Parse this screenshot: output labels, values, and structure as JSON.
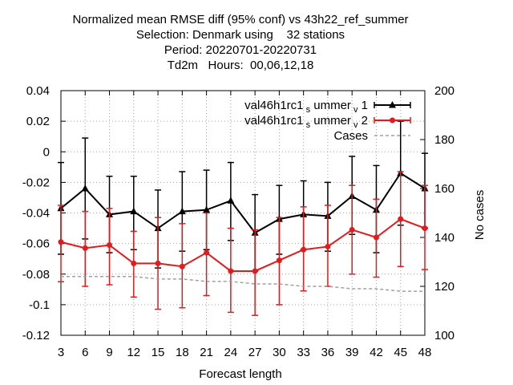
{
  "title": {
    "line1": "Normalized mean RMSE diff (95% conf) vs 43h22_ref_summer",
    "line2": "Selection: Denmark using    32 stations",
    "line3": "Period: 20220701-20220731",
    "line4": "Td2m   Hours:  00,06,12,18"
  },
  "chart_data": {
    "type": "line",
    "xlabel": "Forecast length",
    "ylabel": "",
    "y2label": "No cases",
    "x": [
      3,
      6,
      9,
      12,
      15,
      18,
      21,
      24,
      27,
      30,
      33,
      36,
      39,
      42,
      45,
      48
    ],
    "xlim": [
      3,
      48
    ],
    "ylim": [
      -0.12,
      0.04
    ],
    "y2lim": [
      100,
      200
    ],
    "yticks": [
      0.04,
      0.02,
      0,
      -0.02,
      -0.04,
      -0.06,
      -0.08,
      -0.1,
      -0.12
    ],
    "yticklabels": [
      "0.04",
      "0.02",
      "0",
      "-0.02",
      "-0.04",
      "-0.06",
      "-0.08",
      "-0.1",
      "-0.12"
    ],
    "y2ticks": [
      200,
      180,
      160,
      140,
      120,
      100
    ],
    "grid": true,
    "legend_position": "top-right",
    "series": [
      {
        "name": "val46h1rc1_summer_v1",
        "legend_main": "val46h1rc1",
        "legend_sub1": "s",
        "legend_mid": "ummer",
        "legend_sub2": "v",
        "legend_end": "1",
        "color": "#000000",
        "marker": "triangle",
        "axis": "y1",
        "values": [
          -0.037,
          -0.024,
          -0.041,
          -0.039,
          -0.05,
          -0.039,
          -0.038,
          -0.032,
          -0.053,
          -0.044,
          -0.041,
          -0.042,
          -0.029,
          -0.038,
          -0.014,
          -0.024
        ],
        "err_low": [
          -0.067,
          -0.057,
          -0.066,
          -0.064,
          -0.076,
          -0.065,
          -0.064,
          -0.058,
          -0.078,
          -0.067,
          -0.064,
          -0.065,
          -0.054,
          -0.066,
          -0.048,
          -0.05
        ],
        "err_high": [
          -0.007,
          0.009,
          -0.016,
          -0.016,
          -0.025,
          -0.013,
          -0.012,
          -0.007,
          -0.028,
          -0.022,
          -0.019,
          -0.02,
          -0.003,
          -0.009,
          0.02,
          -0.001
        ]
      },
      {
        "name": "val46h1rc1_summer_v2",
        "legend_main": "val46h1rc1",
        "legend_sub1": "s",
        "legend_mid": "ummer",
        "legend_sub2": "v",
        "legend_end": "2",
        "color": "#e41a1c",
        "marker": "circle",
        "axis": "y1",
        "values": [
          -0.059,
          -0.063,
          -0.061,
          -0.073,
          -0.073,
          -0.075,
          -0.066,
          -0.078,
          -0.078,
          -0.071,
          -0.064,
          -0.062,
          -0.051,
          -0.056,
          -0.044,
          -0.05
        ],
        "err_low": [
          -0.085,
          -0.088,
          -0.087,
          -0.095,
          -0.103,
          -0.102,
          -0.094,
          -0.105,
          -0.107,
          -0.1,
          -0.091,
          -0.088,
          -0.08,
          -0.082,
          -0.075,
          -0.077
        ],
        "err_high": [
          -0.035,
          -0.039,
          -0.037,
          -0.052,
          -0.043,
          -0.047,
          -0.04,
          -0.05,
          -0.051,
          -0.043,
          -0.036,
          -0.035,
          -0.022,
          -0.031,
          -0.013,
          -0.022
        ]
      },
      {
        "name": "Cases",
        "color": "#a0a0a0",
        "style": "dashed",
        "axis": "y2",
        "values": [
          124,
          124,
          124,
          124,
          123,
          123,
          122,
          122,
          121,
          121,
          120,
          120,
          119,
          119,
          118,
          118
        ]
      }
    ]
  }
}
